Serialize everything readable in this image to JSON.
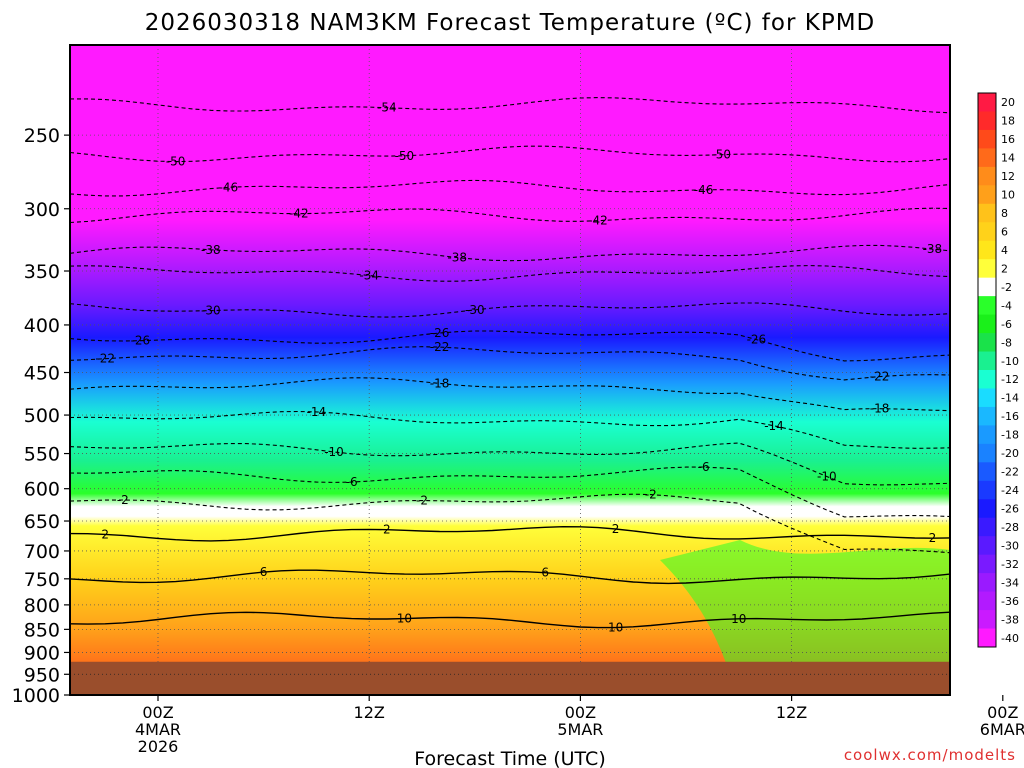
{
  "chart_data": {
    "type": "heatmap",
    "title": "2026030318 NAM3KM Forecast Temperature (ºC) for KPMD",
    "xlabel": "Forecast Time (UTC)",
    "ylabel": "",
    "xlim_hours": [
      -5,
      45
    ],
    "ylim_hpa": [
      1000,
      200
    ],
    "y_scale": "log",
    "y_ticks": [
      "250",
      "300",
      "350",
      "400",
      "450",
      "500",
      "550",
      "600",
      "650",
      "700",
      "750",
      "800",
      "850",
      "900",
      "950",
      "1000"
    ],
    "x_ticks": [
      {
        "hour": 0,
        "lines": [
          "00Z",
          "4MAR",
          "2026"
        ]
      },
      {
        "hour": 12,
        "lines": [
          "12Z"
        ]
      },
      {
        "hour": 24,
        "lines": [
          "00Z",
          "5MAR"
        ]
      },
      {
        "hour": 36,
        "lines": [
          "12Z"
        ]
      },
      {
        "hour": 48,
        "lines": [
          "00Z",
          "6MAR"
        ]
      }
    ],
    "grid": true,
    "ground_level_hpa": 921,
    "ground_color": "#9a4e2c",
    "colorbar": {
      "labels": [
        "20",
        "18",
        "16",
        "14",
        "12",
        "10",
        "8",
        "6",
        "4",
        "2",
        "-2",
        "-4",
        "-6",
        "-8",
        "-10",
        "-12",
        "-14",
        "-16",
        "-18",
        "-20",
        "-22",
        "-24",
        "-26",
        "-28",
        "-30",
        "-32",
        "-34",
        "-36",
        "-38",
        "-40"
      ],
      "colors": [
        "#ff1a44",
        "#ff2a2a",
        "#ff4a1a",
        "#ff6a1a",
        "#ff8c1a",
        "#ffa01a",
        "#ffc21a",
        "#ffd21a",
        "#ffe61a",
        "#ffff3a",
        "#ffffff",
        "#2aff2a",
        "#1af01a",
        "#1ae24a",
        "#1af090",
        "#1affd2",
        "#1adcff",
        "#1ab8ff",
        "#1a9aff",
        "#1a82ff",
        "#1a5aff",
        "#1a3aff",
        "#1a1aff",
        "#3a1aff",
        "#5a1aff",
        "#7a1aff",
        "#9a1aff",
        "#b21aff",
        "#ca1aff",
        "#ff1aff"
      ]
    },
    "isotherms": [
      {
        "temp": -54,
        "pressure_hpa": 232,
        "label_hours": [
          13
        ]
      },
      {
        "temp": -50,
        "pressure_hpa": 262,
        "label_hours": [
          1,
          14,
          32
        ]
      },
      {
        "temp": -46,
        "pressure_hpa": 285,
        "label_hours": [
          4,
          31
        ]
      },
      {
        "temp": -42,
        "pressure_hpa": 305,
        "label_hours": [
          8,
          25
        ]
      },
      {
        "temp": -38,
        "pressure_hpa": 335,
        "label_hours": [
          3,
          17,
          44
        ]
      },
      {
        "temp": -34,
        "pressure_hpa": 352,
        "label_hours": [
          12
        ]
      },
      {
        "temp": -30,
        "pressure_hpa": 385,
        "label_hours": [
          3,
          18,
          46
        ]
      },
      {
        "temp": -26,
        "pressure_hpa": 412,
        "label_hours": [
          -1,
          16,
          34
        ]
      },
      {
        "temp": -22,
        "pressure_hpa": 430,
        "label_hours": [
          -3,
          16,
          41
        ]
      },
      {
        "temp": -18,
        "pressure_hpa": 465,
        "label_hours": [
          16,
          41
        ]
      },
      {
        "temp": -14,
        "pressure_hpa": 505,
        "label_hours": [
          9,
          35
        ]
      },
      {
        "temp": -10,
        "pressure_hpa": 545,
        "label_hours": [
          10,
          38
        ]
      },
      {
        "temp": -6,
        "pressure_hpa": 580,
        "label_hours": [
          11,
          31
        ]
      },
      {
        "temp": -2,
        "pressure_hpa": 620,
        "label_hours": [
          -2,
          15,
          28
        ]
      },
      {
        "temp": 2,
        "pressure_hpa": 670,
        "label_hours": [
          -3,
          13,
          26,
          44
        ]
      },
      {
        "temp": 6,
        "pressure_hpa": 745,
        "label_hours": [
          6,
          22
        ]
      },
      {
        "temp": 10,
        "pressure_hpa": 830,
        "label_hours": [
          14,
          26,
          33
        ]
      }
    ],
    "credit": "coolwx.com/modelts"
  }
}
